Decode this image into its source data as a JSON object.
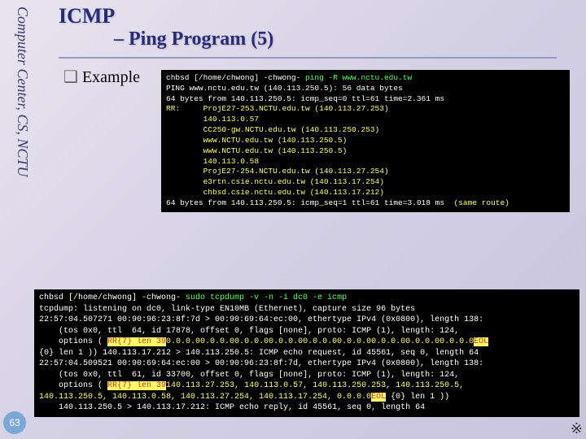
{
  "sidebar": "Computer Center, CS, NCTU",
  "title": "ICMP",
  "subtitle": "– Ping Program (5)",
  "example_label": "Example",
  "term1": {
    "line1_a": "chbsd [/home/chwong] -chwong-",
    "line1_b": " ping -R www.nctu.edu.tw",
    "line2": "PING www.nctu.edu.tw (140.113.250.5): 56 data bytes",
    "line3": "64 bytes from 140.113.250.5: icmp_seq=0 ttl=61 time=2.361 ms",
    "line4": "RR:     ProjE27-253.NCTU.edu.tw (140.113.27.253)",
    "line5": "        140.113.0.57",
    "line6": "        CC250-gw.NCTU.edu.tw (140.113.250.253)",
    "line7": "        www.NCTU.edu.tw (140.113.250.5)",
    "line8": "        www.NCTU.edu.tw (140.113.250.5)",
    "line9": "        140.113.0.58",
    "line10": "        ProjE27-254.NCTU.edu.tw (140.113.27.254)",
    "line11": "        e3rtn.csie.nctu.edu.tw (140.113.17.254)",
    "line12": "        chbsd.csie.nctu.edu.tw (140.113.17.212)",
    "line13a": "64 bytes from 140.113.250.5: icmp_seq=1 ttl=61 time=3.018 ms",
    "line13b": "  (same route)"
  },
  "term2": {
    "l1a": "chbsd [/home/chwong] -chwong-",
    "l1b": " sudo tcpdump -v -n -i dc0 -e icmp",
    "l2": "tcpdump: listening on dc0, link-type EN10MB (Ethernet), capture size 96 bytes",
    "l3": "22:57:04.507271 00:90:96:23:8f:7d > 00:90:69:64:ec:00, ethertype IPv4 (0x0800), length 138:",
    "l4a": "    (tos 0x0, ttl  64, id 17878, offset 0, flags [none], proto: ICMP (1), length: 124,",
    "l4b": "    options ( ",
    "l4_rr": "RR{7} len 39",
    "l4c": "0.0.0.00.0.0.00.0.0.00.0.0.00.0.0.00.0.0.00.0.0.00.0.0.00.0.0.0",
    "l4_eol": "EOL",
    "l5": "{0} len 1 )) 140.113.17.212 > 140.113.250.5: ICMP echo request, id 45561, seq 0, length 64",
    "l6": "22:57:04.509521 00:90:69:64:ec:00 > 00:90:96:23:8f:7d, ethertype IPv4 (0x0800), length 138:",
    "l7a": "    (tos 0x0, ttl  61, id 33700, offset 0, flags [none], proto: ICMP (1), length: 124,",
    "l7b": "    options ( ",
    "l7_rr": "RR{7} len 39",
    "l7c": "140.113.27.253, 140.113.0.57, 140.113.250.253, 140.113.250.5,",
    "l8a": "140.113.250.5, 140.113.0.58, 140.113.27.254, 140.113.17.254, 0.0.0.0",
    "l8_eol": "EOL",
    "l8b": " {0} len 1 ))",
    "l9": "    140.113.250.5 > 140.113.17.212: ICMP echo reply, id 45561, seq 0, length 64"
  },
  "page": "63",
  "colors": {
    "green": "#5aff5a",
    "yellow": "#ffff66",
    "red": "#cc3333",
    "title": "#2a2a7a"
  }
}
